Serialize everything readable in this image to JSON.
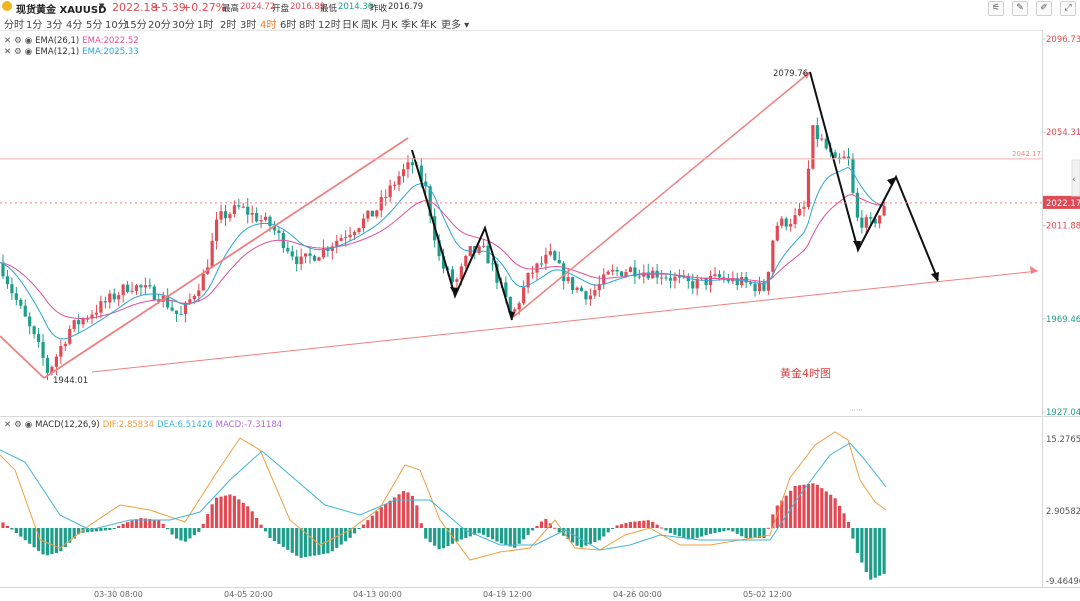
{
  "header": {
    "symbol": "现货黄金 XAUUSD",
    "price": "2022.18",
    "change": "+5.39",
    "change_pct": "+0.27%",
    "high_label": "最高",
    "high": "2024.72",
    "open_label": "开盘",
    "open": "2016.89",
    "low_label": "最低",
    "low": "2014.36",
    "prev_label": "昨收",
    "prev": "2016.79"
  },
  "timeframes": [
    "分时",
    "1分",
    "3分",
    "4分",
    "5分",
    "10分",
    "15分",
    "20分",
    "30分",
    "1时",
    "2时",
    "3时",
    "4时",
    "6时",
    "8时",
    "12时",
    "日K",
    "周K",
    "月K",
    "季K",
    "年K",
    "更多"
  ],
  "active_timeframe": "4时",
  "toolbar_icons": [
    "chart-type-icon",
    "pencil-icon",
    "brush-icon",
    "fullscreen-icon"
  ],
  "indicators": {
    "ema26_label": "EMA(26,1)",
    "ema26_value": "EMA:2022.52",
    "ema12_label": "EMA(12,1)",
    "ema12_value": "EMA:2025.33",
    "macd_label": "MACD(12,26,9)",
    "dif": "DIF:2.85834",
    "dea": "DEA:6.51426",
    "macd": "MACD:-7.31184"
  },
  "price_axis": {
    "ticks": [
      "2096.73",
      "2054.31",
      "2011.88",
      "1969.46",
      "1927.04"
    ],
    "current": "2022.17",
    "ref_line": "2042.17"
  },
  "macd_axis": {
    "ticks": [
      "15.27659",
      "2.90582",
      "-9.46496"
    ]
  },
  "time_axis": [
    "03-30 08:00",
    "04-05 20:00",
    "04-13 00:00",
    "04-19 12:00",
    "04-26 00:00",
    "05-02 12:00"
  ],
  "annotations": {
    "high": "2079.76",
    "low": "1944.01",
    "chart_title": "黄金4时图"
  },
  "colors": {
    "up": "#e04a55",
    "down": "#1e9e8a",
    "ema_pink": "#e0509a",
    "ema_blue": "#2aa7d6",
    "dif": "#f0a040",
    "dea": "#3fb6d6",
    "trend": "#f08080",
    "accent": "#f07a2a"
  }
}
